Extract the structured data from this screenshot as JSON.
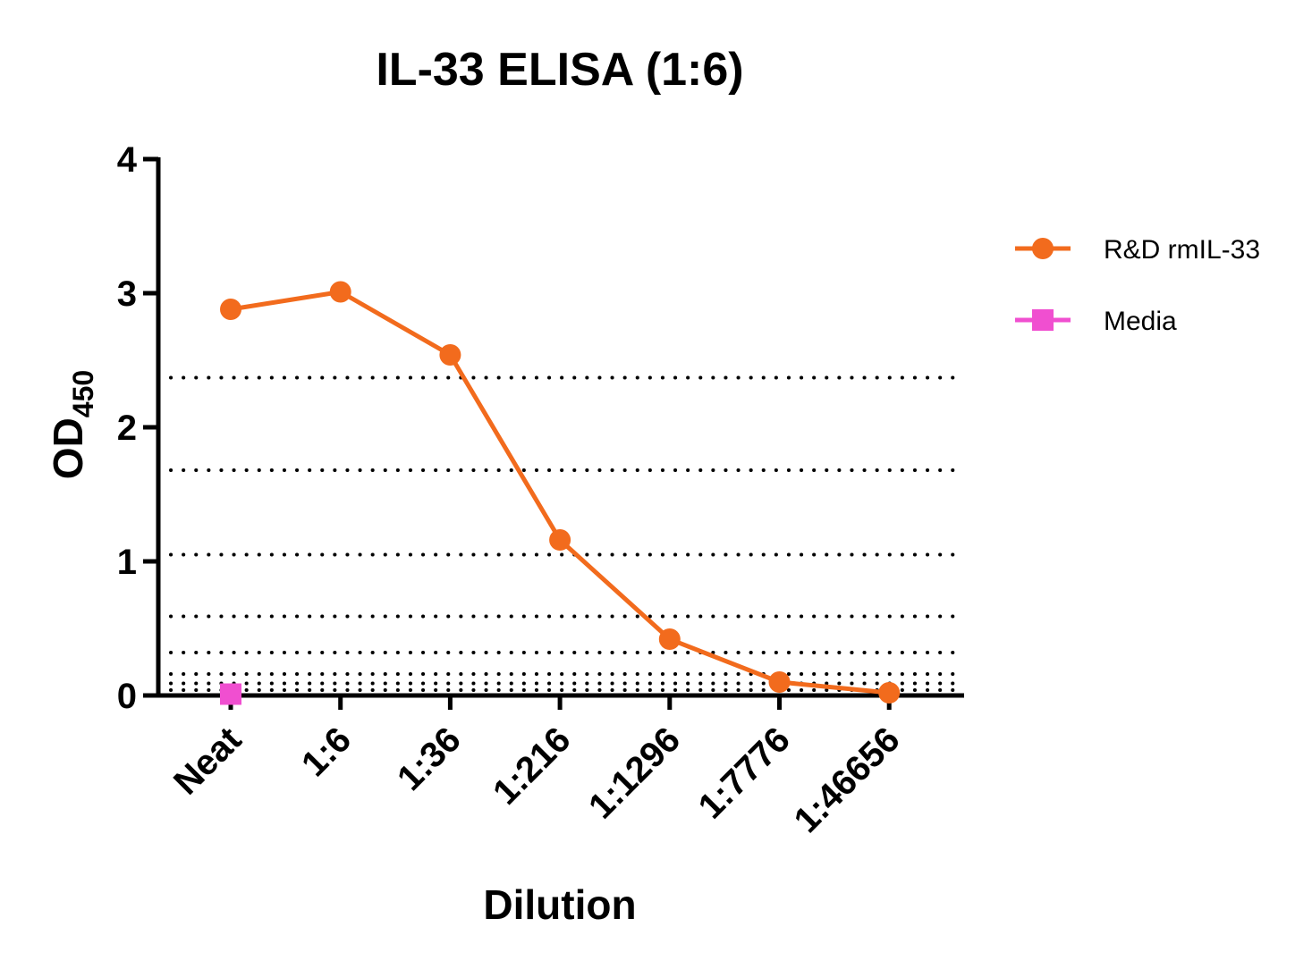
{
  "chart_data": {
    "type": "line",
    "title": "IL-33 ELISA (1:6)",
    "xlabel": "Dilution",
    "ylabel_main": "OD",
    "ylabel_sub": "450",
    "categories": [
      "Neat",
      "1:6",
      "1:36",
      "1:216",
      "1:1296",
      "1:7776",
      "1:46656"
    ],
    "ylim": [
      0,
      4
    ],
    "yticks": [
      0,
      1,
      2,
      3,
      4
    ],
    "reference_lines": [
      2.37,
      1.68,
      1.05,
      0.59,
      0.32,
      0.16,
      0.09,
      0.04
    ],
    "grid": false,
    "legend_position": "right",
    "series": [
      {
        "name": "R&D rmIL-33",
        "color": "#F26B1D",
        "marker": "circle",
        "values": [
          2.88,
          3.01,
          2.54,
          1.16,
          0.42,
          0.1,
          0.02
        ]
      },
      {
        "name": "Media",
        "color": "#F04FD0",
        "marker": "square",
        "values": [
          0.01,
          null,
          null,
          null,
          null,
          null,
          null
        ]
      }
    ]
  }
}
